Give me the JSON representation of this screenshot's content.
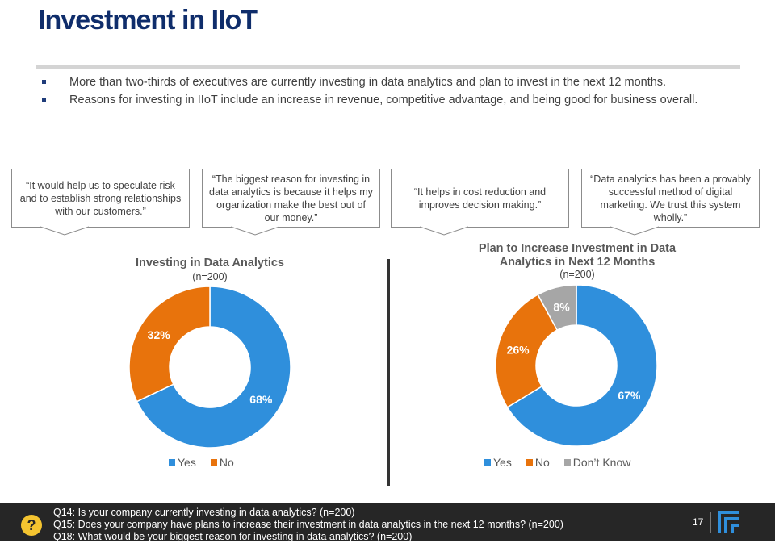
{
  "title": "Investment in IIoT",
  "bullets": [
    "More than two-thirds of executives are currently investing in data analytics and plan to invest in the next 12 months.",
    "Reasons for investing in IIoT include an increase in revenue, competitive advantage, and being good for business overall."
  ],
  "quotes": [
    "“It would help us to speculate risk and to establish strong relationships with our customers.”",
    "“The biggest reason for investing in data analytics is because it helps my organization make the best out of our money.”",
    "“It helps in cost reduction and improves decision making.”",
    "“Data analytics has been a provably successful method of digital marketing. We trust this system wholly.”"
  ],
  "colors": {
    "yes": "#2f8fdc",
    "no": "#e8730c",
    "dont_know": "#a6a6a6",
    "title": "#0f2d6b"
  },
  "chart_data": [
    {
      "type": "pie",
      "title": "Investing in Data Analytics",
      "subtitle": "(n=200)",
      "categories": [
        "Yes",
        "No"
      ],
      "values": [
        68,
        32
      ],
      "labels": [
        "68%",
        "32%"
      ],
      "legend": "bottom"
    },
    {
      "type": "pie",
      "title": "Plan to Increase Investment in Data Analytics in Next 12 Months",
      "subtitle": "(n=200)",
      "categories": [
        "Yes",
        "No",
        "Don’t Know"
      ],
      "values": [
        67,
        26,
        8
      ],
      "labels": [
        "67%",
        "26%",
        "8%"
      ],
      "legend": "bottom"
    }
  ],
  "footer": {
    "questions": [
      "Q14: Is your company currently investing in data analytics? (n=200)",
      "Q15: Does your company have plans to increase their investment in data analytics in the next 12 months? (n=200)",
      "Q18: What would be your biggest reason for investing in data analytics? (n=200)"
    ],
    "page": "17",
    "help_icon": "question-mark-icon",
    "logo_icon": "brand-logo-icon"
  }
}
